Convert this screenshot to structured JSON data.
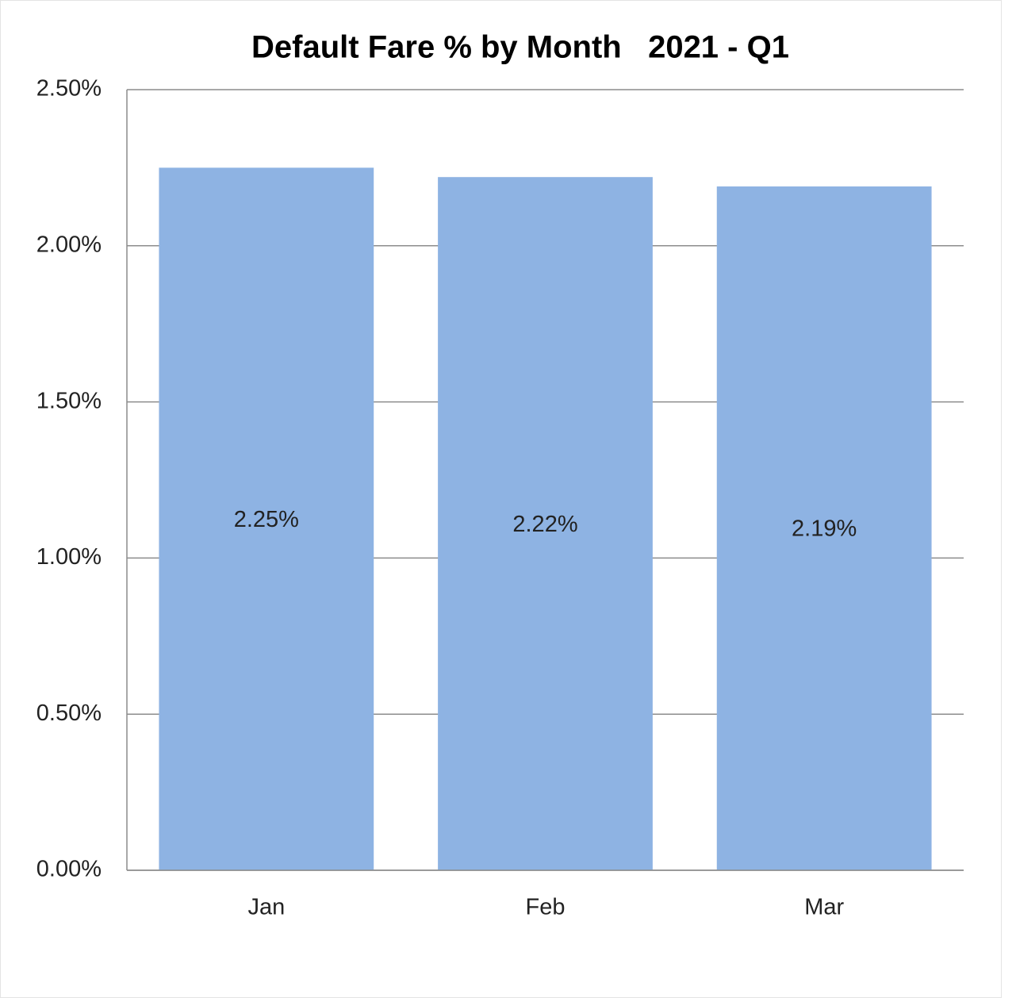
{
  "chart_data": {
    "type": "bar",
    "title": "Default Fare % by Month   2021 - Q1",
    "categories": [
      "Jan",
      "Feb",
      "Mar"
    ],
    "values": [
      2.25,
      2.22,
      2.19
    ],
    "value_labels": [
      "2.25%",
      "2.22%",
      "2.19%"
    ],
    "color": "#8eb3e3",
    "ylim": [
      0,
      2.5
    ],
    "yticks": [
      {
        "value": 0,
        "label": "0.00%"
      },
      {
        "value": 0.5,
        "label": "0.50%"
      },
      {
        "value": 1,
        "label": "1.00%"
      },
      {
        "value": 1.5,
        "label": "1.50%"
      },
      {
        "value": 2,
        "label": "2.00%"
      },
      {
        "value": 2.5,
        "label": "2.50%"
      }
    ],
    "grid": true
  }
}
